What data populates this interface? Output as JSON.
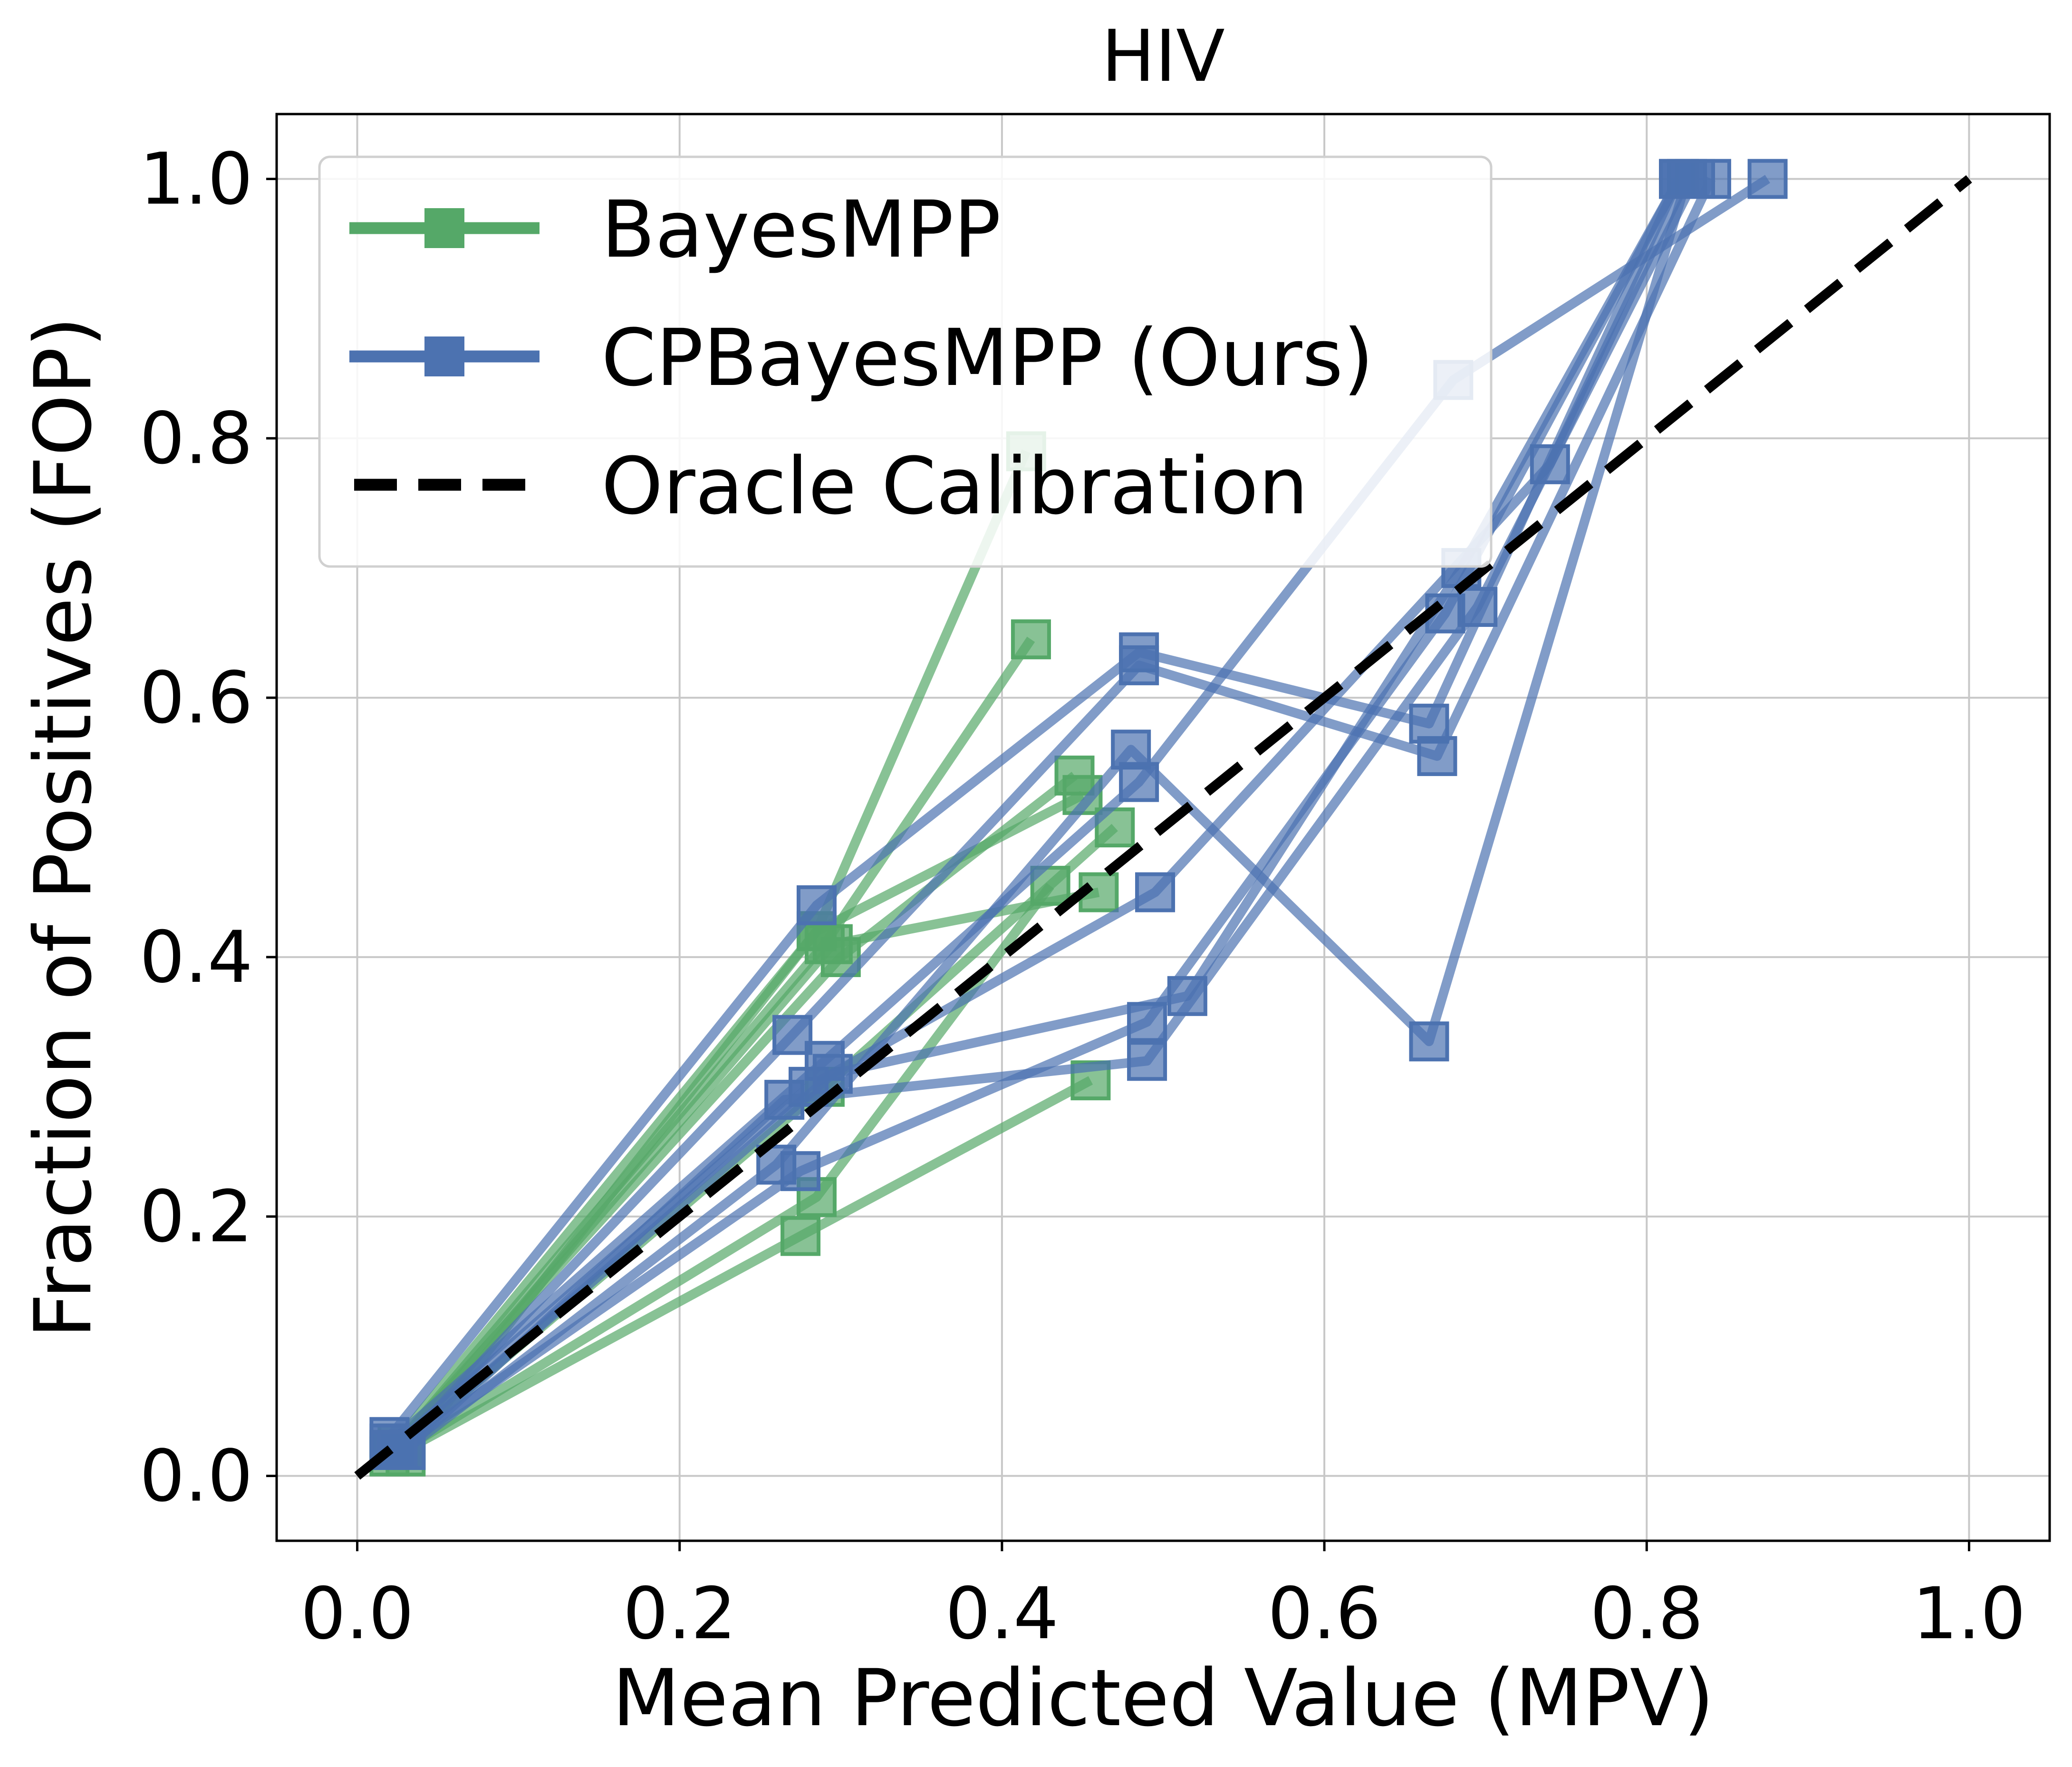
{
  "chart_data": {
    "type": "line",
    "title": "HIV",
    "xlabel": "Mean Predicted Value (MPV)",
    "ylabel": "Fraction of Positives (FOP)",
    "xlim": [
      -0.05,
      1.05
    ],
    "ylim": [
      -0.05,
      1.05
    ],
    "xticks": [
      "0.0",
      "0.2",
      "0.4",
      "0.6",
      "0.8",
      "1.0"
    ],
    "yticks": [
      "0.0",
      "0.2",
      "0.4",
      "0.6",
      "0.8",
      "1.0"
    ],
    "grid": true,
    "legend_position": "top-left",
    "legend": [
      "BayesMPP",
      "CPBayesMPP (Ours)",
      "Oracle Calibration"
    ],
    "colors": {
      "BayesMPP": "#55a868",
      "CPBayesMPP": "#4c72b0",
      "oracle": "#000000"
    },
    "oracle": {
      "x": [
        0,
        1
      ],
      "y": [
        0,
        1
      ]
    },
    "bayes_runs": [
      {
        "x": [
          0.02,
          0.285,
          0.415
        ],
        "y": [
          0.02,
          0.42,
          0.79
        ]
      },
      {
        "x": [
          0.022,
          0.29,
          0.418
        ],
        "y": [
          0.02,
          0.41,
          0.645
        ]
      },
      {
        "x": [
          0.025,
          0.3,
          0.445
        ],
        "y": [
          0.025,
          0.4,
          0.54
        ]
      },
      {
        "x": [
          0.03,
          0.275,
          0.455
        ],
        "y": [
          0.02,
          0.185,
          0.305
        ]
      },
      {
        "x": [
          0.028,
          0.285,
          0.43
        ],
        "y": [
          0.02,
          0.215,
          0.455
        ]
      },
      {
        "x": [
          0.02,
          0.29,
          0.47
        ],
        "y": [
          0.015,
          0.3,
          0.5
        ]
      },
      {
        "x": [
          0.025,
          0.295,
          0.46
        ],
        "y": [
          0.02,
          0.41,
          0.45
        ]
      },
      {
        "x": [
          0.03,
          0.285,
          0.45
        ],
        "y": [
          0.015,
          0.42,
          0.525
        ]
      }
    ],
    "cp_runs": [
      {
        "x": [
          0.02,
          0.285,
          0.485,
          0.665,
          0.82
        ],
        "y": [
          0.03,
          0.44,
          0.635,
          0.58,
          1.0
        ]
      },
      {
        "x": [
          0.025,
          0.27,
          0.485,
          0.67,
          0.84
        ],
        "y": [
          0.02,
          0.34,
          0.625,
          0.555,
          1.0
        ]
      },
      {
        "x": [
          0.03,
          0.26,
          0.48,
          0.665,
          0.825
        ],
        "y": [
          0.02,
          0.24,
          0.56,
          0.335,
          1.0
        ]
      },
      {
        "x": [
          0.02,
          0.29,
          0.485,
          0.68,
          0.875
        ],
        "y": [
          0.025,
          0.32,
          0.535,
          0.845,
          1.0
        ]
      },
      {
        "x": [
          0.025,
          0.275,
          0.49,
          0.675,
          0.82
        ],
        "y": [
          0.02,
          0.235,
          0.35,
          0.665,
          1.0
        ]
      },
      {
        "x": [
          0.03,
          0.265,
          0.49,
          0.695,
          0.83
        ],
        "y": [
          0.02,
          0.29,
          0.32,
          0.67,
          1.0
        ]
      },
      {
        "x": [
          0.02,
          0.28,
          0.495,
          0.74,
          0.825
        ],
        "y": [
          0.02,
          0.3,
          0.45,
          0.78,
          1.0
        ]
      },
      {
        "x": [
          0.025,
          0.295,
          0.515,
          0.685,
          0.82
        ],
        "y": [
          0.02,
          0.31,
          0.37,
          0.7,
          1.0
        ]
      }
    ]
  }
}
